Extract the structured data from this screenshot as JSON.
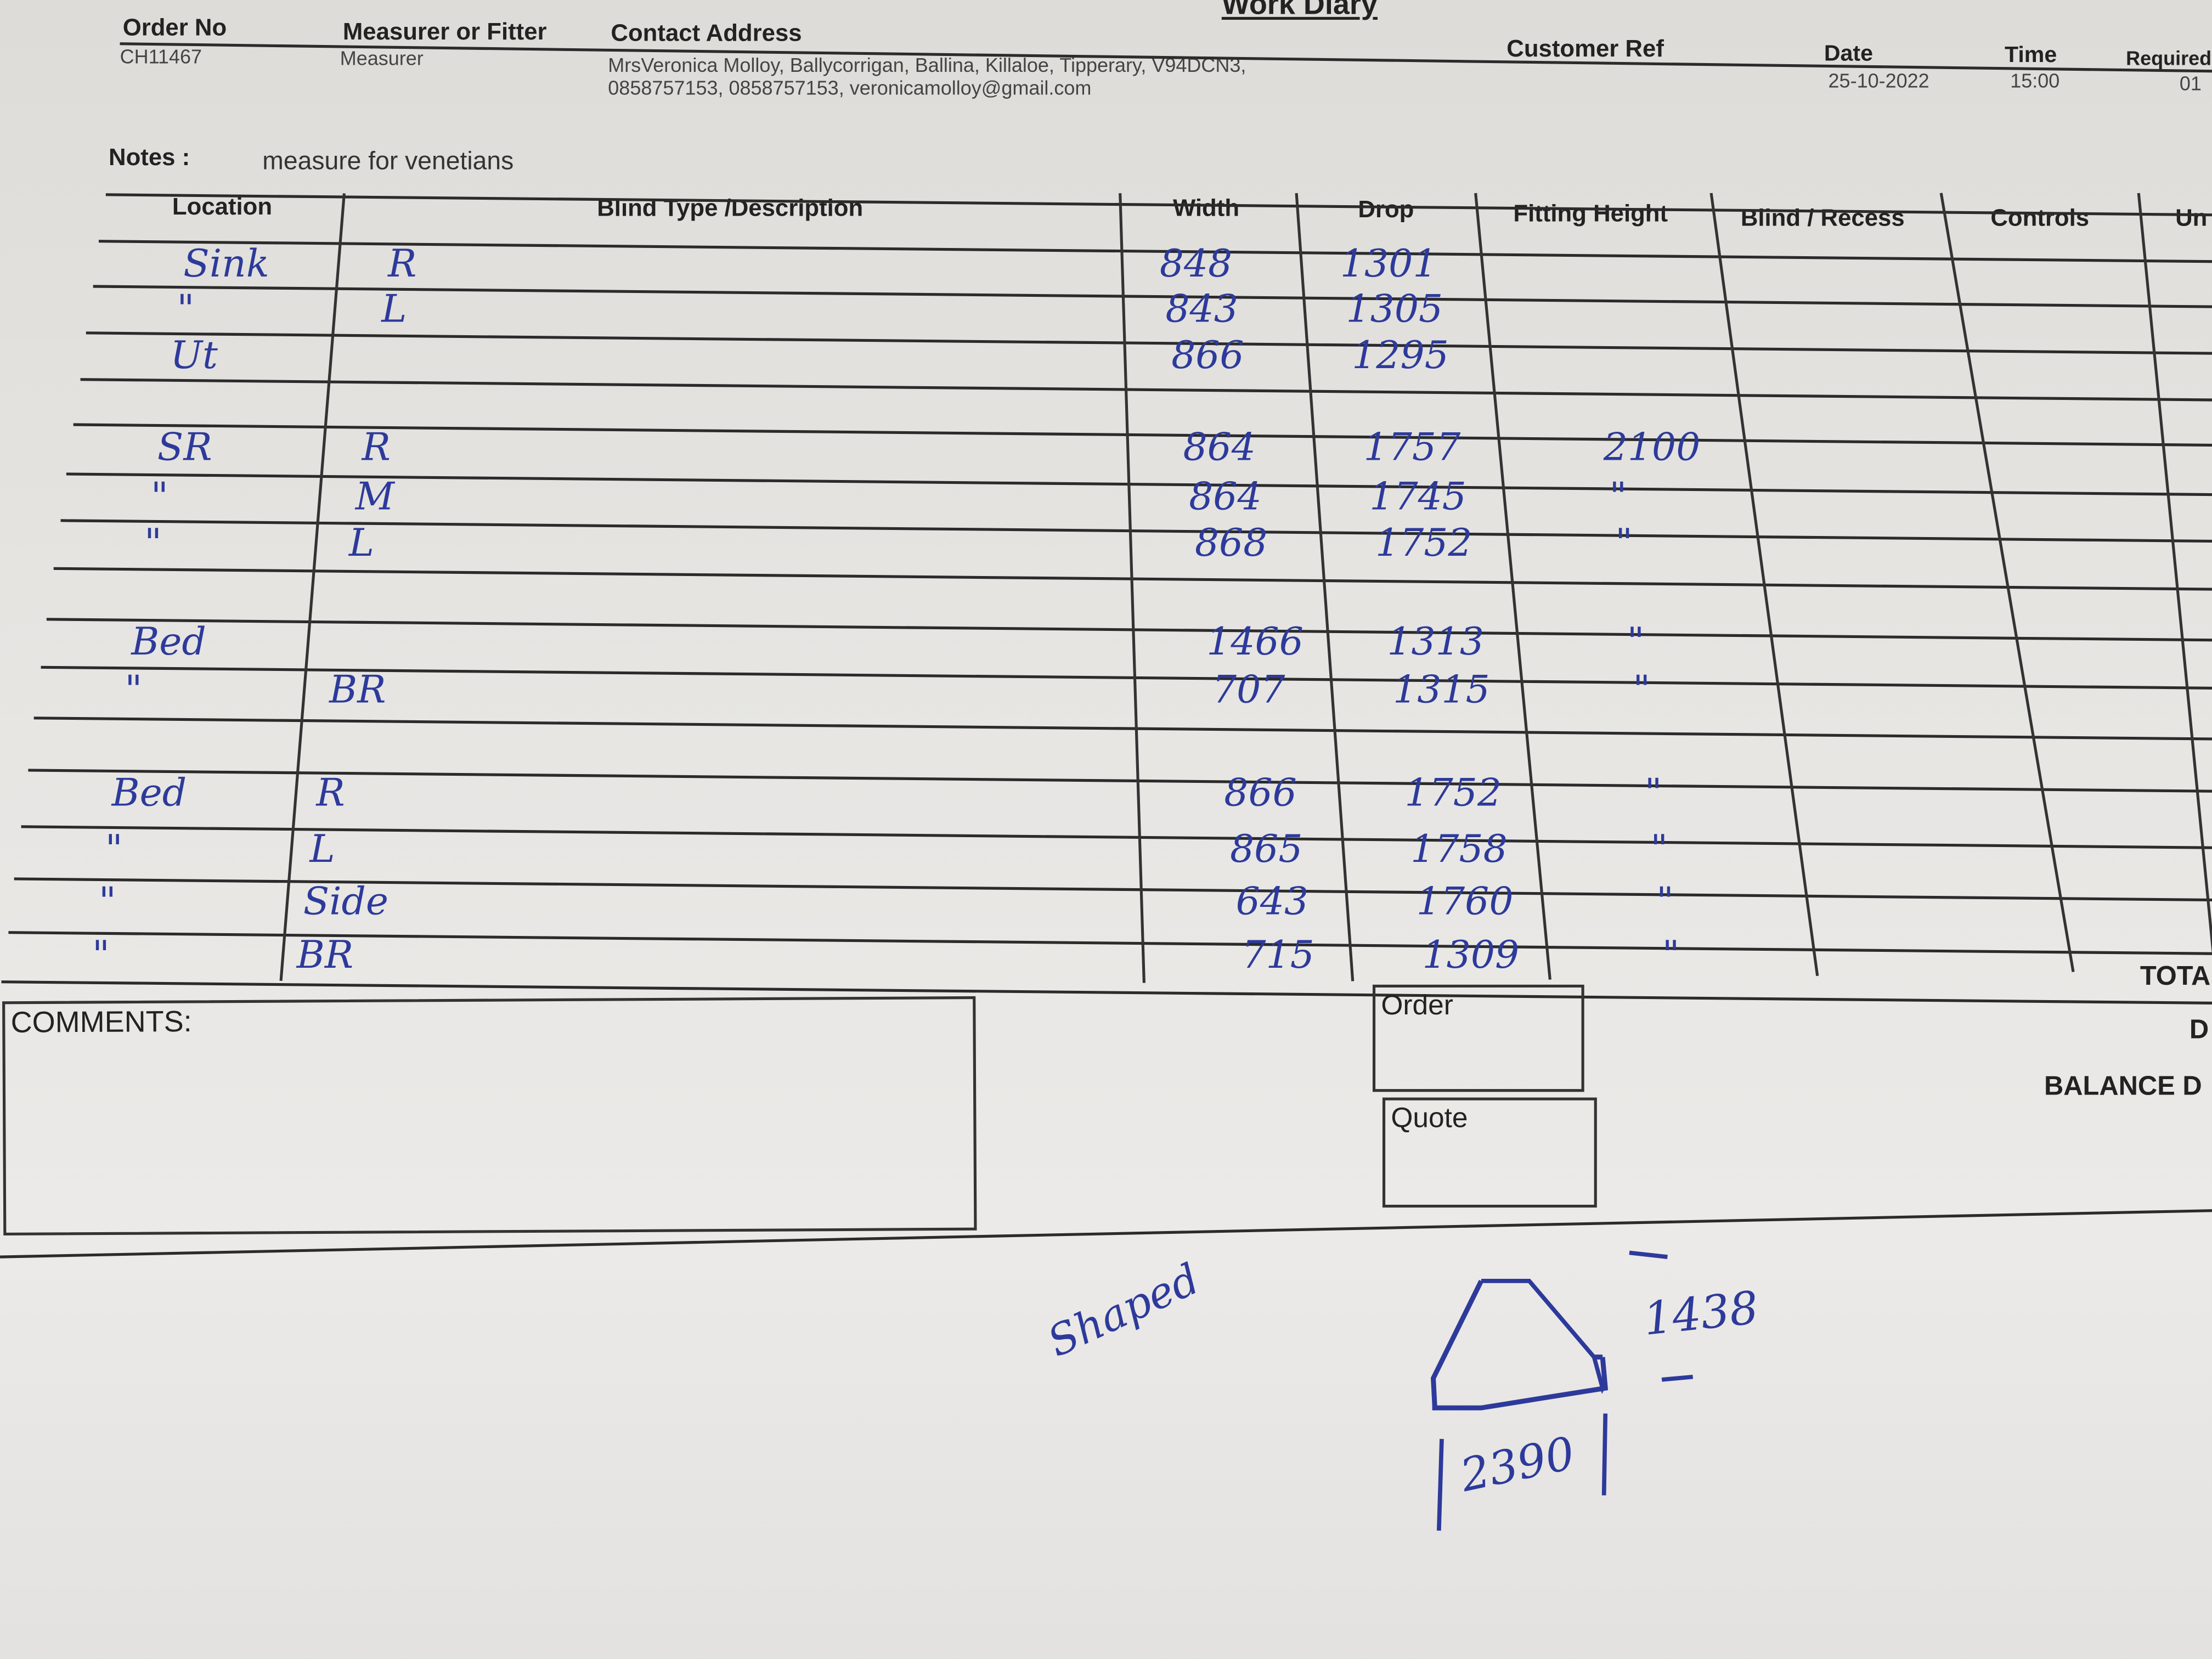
{
  "header": {
    "title": "Work Diary",
    "order_no": {
      "label": "Order No",
      "value": "CH11467"
    },
    "measurer": {
      "label": "Measurer or Fitter",
      "value": "Measurer"
    },
    "contact": {
      "label": "Contact Address",
      "line1": "MrsVeronica Molloy, Ballycorrigan, Ballina, Killaloe, Tipperary, V94DCN3,",
      "line2": "0858757153, 0858757153, veronicamolloy@gmail.com"
    },
    "customer_ref": {
      "label": "Customer Ref",
      "value": ""
    },
    "date": {
      "label": "Date",
      "value": "25-10-2022"
    },
    "time": {
      "label": "Time",
      "value": "15:00"
    },
    "required": {
      "label": "Required",
      "value": "01"
    }
  },
  "notes": {
    "label": "Notes :",
    "value": "measure for venetians"
  },
  "table": {
    "columns": [
      "Location",
      "Blind Type /Description",
      "Width",
      "Drop",
      "Fitting Height",
      "Blind / Recess",
      "Controls",
      "Un"
    ],
    "rows": [
      {
        "location": "Sink",
        "type": "R",
        "width": "848",
        "drop": "1301",
        "fitting": ""
      },
      {
        "location": "\"",
        "type": "L",
        "width": "843",
        "drop": "1305",
        "fitting": ""
      },
      {
        "location": "Ut",
        "type": "",
        "width": "866",
        "drop": "1295",
        "fitting": ""
      },
      {
        "location": "",
        "type": "",
        "width": "",
        "drop": "",
        "fitting": ""
      },
      {
        "location": "SR",
        "type": "R",
        "width": "864",
        "drop": "1757",
        "fitting": "2100"
      },
      {
        "location": "\"",
        "type": "M",
        "width": "864",
        "drop": "1745",
        "fitting": "\""
      },
      {
        "location": "\"",
        "type": "L",
        "width": "868",
        "drop": "1752",
        "fitting": "\""
      },
      {
        "location": "",
        "type": "",
        "width": "",
        "drop": "",
        "fitting": ""
      },
      {
        "location": "Bed",
        "type": "",
        "width": "1466",
        "drop": "1313",
        "fitting": "\""
      },
      {
        "location": "\"",
        "type": "BR",
        "width": "707",
        "drop": "1315",
        "fitting": "\""
      },
      {
        "location": "",
        "type": "",
        "width": "",
        "drop": "",
        "fitting": ""
      },
      {
        "location": "Bed",
        "type": "R",
        "width": "866",
        "drop": "1752",
        "fitting": "\""
      },
      {
        "location": "\"",
        "type": "L",
        "width": "865",
        "drop": "1758",
        "fitting": "\""
      },
      {
        "location": "\"",
        "type": "Side",
        "width": "643",
        "drop": "1760",
        "fitting": "\""
      },
      {
        "location": "\"",
        "type": "BR",
        "width": "715",
        "drop": "1309",
        "fitting": "\""
      }
    ]
  },
  "footer": {
    "comments_label": "COMMENTS:",
    "order_label": "Order",
    "quote_label": "Quote",
    "total_label": "TOTA",
    "d_label": "D",
    "balance_label": "BALANCE D"
  },
  "sketch": {
    "note": "Shaped",
    "height": "1438",
    "width": "2390",
    "ink_color": "#2d3a9b"
  }
}
